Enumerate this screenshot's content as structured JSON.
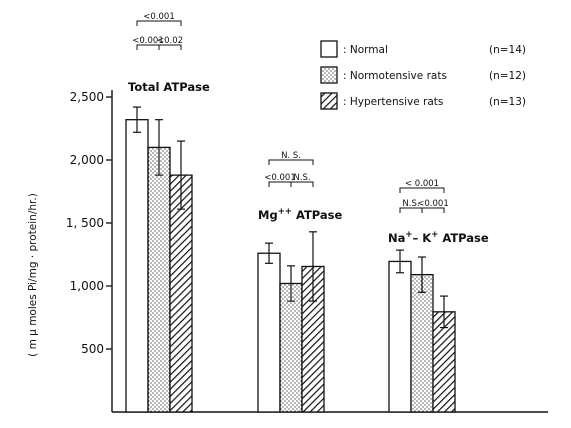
{
  "chart_data": {
    "type": "bar",
    "ylabel": "( m μ moles Pi/mg · protein/hr.)",
    "ylim": [
      0,
      2500
    ],
    "yticks": [
      500,
      1000,
      1500,
      2000,
      2500
    ],
    "ytick_labels": [
      "500",
      "1,000",
      "1, 500",
      "2,000",
      "2,500"
    ],
    "categories": [
      "Total ATPase",
      "Mg⁺⁺ ATPase",
      "Na⁺– K⁺ ATPase"
    ],
    "group_labels": [
      {
        "text": "Total  ATPase"
      },
      {
        "base": "Mg",
        "sup": "++",
        "rest": " ATPase"
      },
      {
        "base": "Na",
        "sup": "+",
        "mid": "– K",
        "sup2": "+",
        "rest": " ATPase"
      }
    ],
    "series": [
      {
        "name": "Normal",
        "n": "(n=14)",
        "fill": "white",
        "values": [
          2320,
          1260,
          1195
        ],
        "errors": [
          100,
          80,
          90
        ]
      },
      {
        "name": "Normotensive rats",
        "n": "(n=12)",
        "fill": "dots",
        "values": [
          2100,
          1020,
          1090
        ],
        "errors": [
          220,
          140,
          140
        ]
      },
      {
        "name": "Hypertensive rats",
        "n": "(n=13)",
        "fill": "hatch",
        "values": [
          1880,
          1155,
          795
        ],
        "errors": [
          270,
          275,
          125
        ]
      }
    ],
    "significance": [
      {
        "top": "<0.001",
        "left": "<0.001",
        "right": "<0.02"
      },
      {
        "top": "N. S.",
        "left": "<0.001",
        "right": "N.S."
      },
      {
        "top": "< 0.001",
        "left": "N.S.",
        "right": "<0.001"
      }
    ],
    "legend_position": "top-right",
    "grid": false
  }
}
